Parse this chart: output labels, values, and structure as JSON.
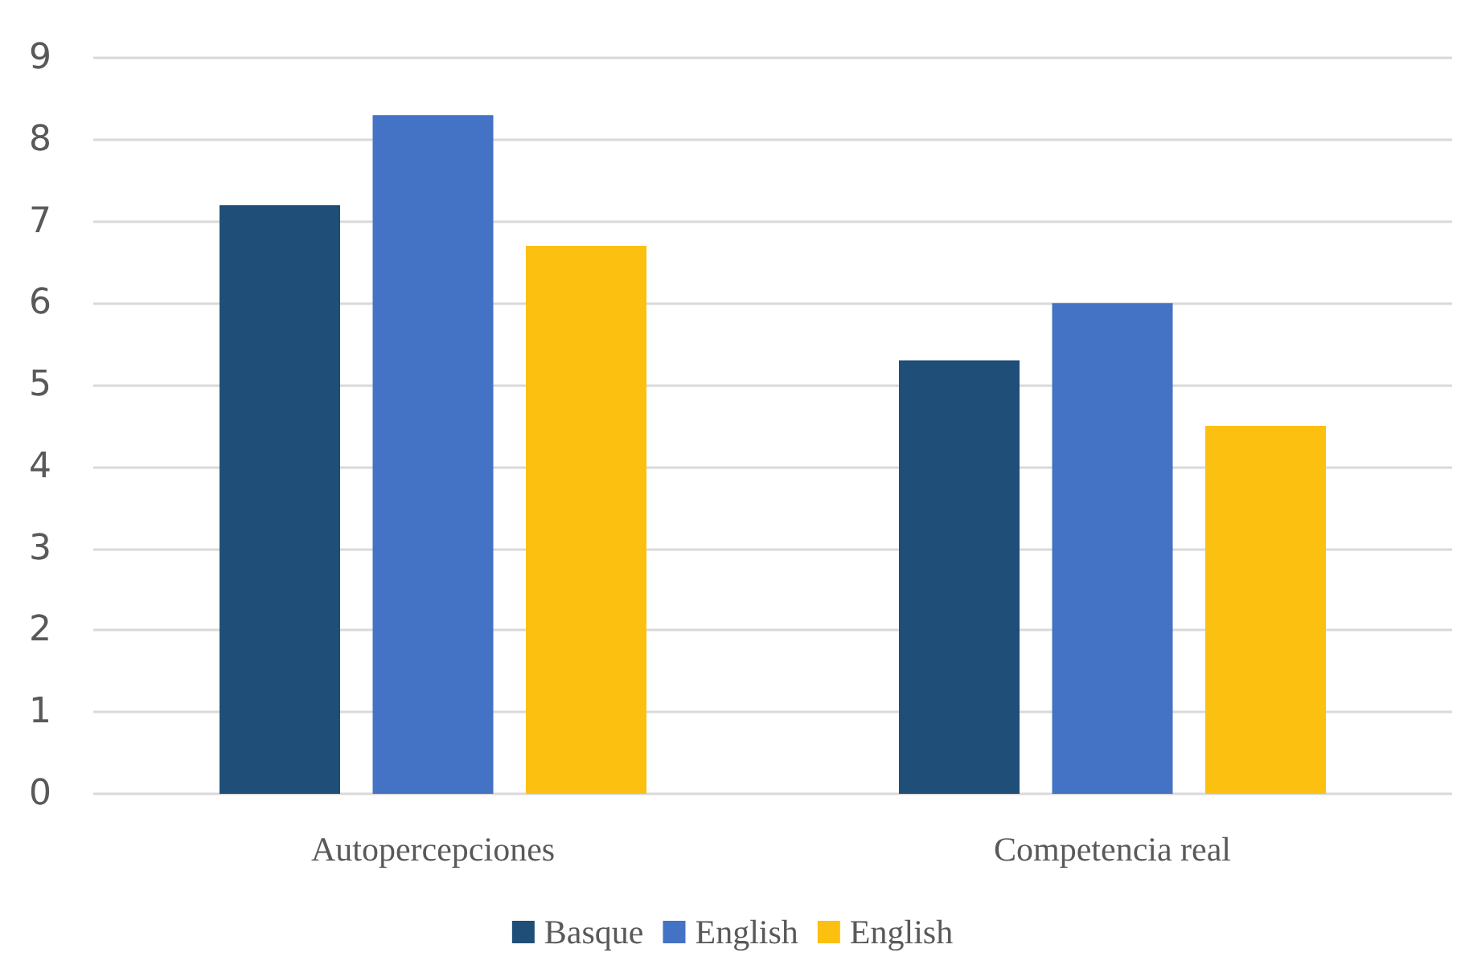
{
  "chart_data": {
    "type": "bar",
    "categories": [
      "Autopercepciones",
      "Competencia real"
    ],
    "series": [
      {
        "name": "Basque",
        "color": "#1f4e79",
        "values": [
          7.2,
          5.3
        ]
      },
      {
        "name": "English",
        "color": "#4472c4",
        "values": [
          8.3,
          6.0
        ]
      },
      {
        "name": "English",
        "color": "#fcc010",
        "values": [
          6.7,
          4.5
        ]
      }
    ],
    "ylim": [
      0,
      9
    ],
    "yticks": [
      0,
      1,
      2,
      3,
      4,
      5,
      6,
      7,
      8,
      9
    ],
    "grid": "y",
    "legend": "bottom"
  }
}
